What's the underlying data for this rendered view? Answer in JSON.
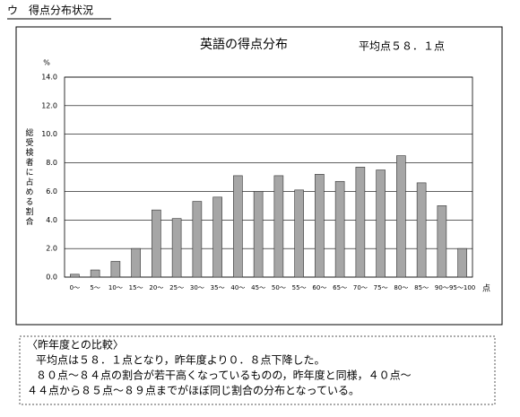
{
  "header": {
    "title": "ウ　得点分布状況"
  },
  "chart_data": {
    "type": "bar",
    "title": "英語の得点分布",
    "subtitle": "平均点５８．１点",
    "y_unit": "%",
    "y_label": "総受検者に占める割合",
    "x_unit": "点",
    "categories": [
      "0〜",
      "5〜",
      "10〜",
      "15〜",
      "20〜",
      "25〜",
      "30〜",
      "35〜",
      "40〜",
      "45〜",
      "50〜",
      "55〜",
      "60〜",
      "65〜",
      "70〜",
      "75〜",
      "80〜",
      "85〜",
      "90〜",
      "95〜100"
    ],
    "values": [
      0.2,
      0.5,
      1.1,
      2.0,
      4.7,
      4.1,
      5.3,
      5.6,
      7.1,
      6.0,
      7.1,
      6.1,
      7.2,
      6.7,
      7.7,
      7.5,
      8.5,
      6.6,
      5.0,
      2.0
    ],
    "color": "#a6a6a6",
    "ylim": [
      0,
      14
    ],
    "yticks": [
      {
        "value": 0,
        "label": "0.0"
      },
      {
        "value": 2,
        "label": "2.0"
      },
      {
        "value": 4,
        "label": "4.0"
      },
      {
        "value": 6,
        "label": "6.0"
      },
      {
        "value": 8,
        "label": "8.0"
      },
      {
        "value": 10,
        "label": "10.0"
      },
      {
        "value": 12,
        "label": "12.0"
      },
      {
        "value": 14,
        "label": "14.0"
      }
    ],
    "grid": true
  },
  "comparison": {
    "heading": "〈昨年度との比較〉",
    "lines": [
      "平均点は５８．１点となり，昨年度より０．８点下降した。",
      "８０点〜８４点の割合が若干高くなっているものの，昨年度と同様，４０点〜",
      "４４点から８５点〜８９点までがほぼ同じ割合の分布となっている。"
    ]
  }
}
